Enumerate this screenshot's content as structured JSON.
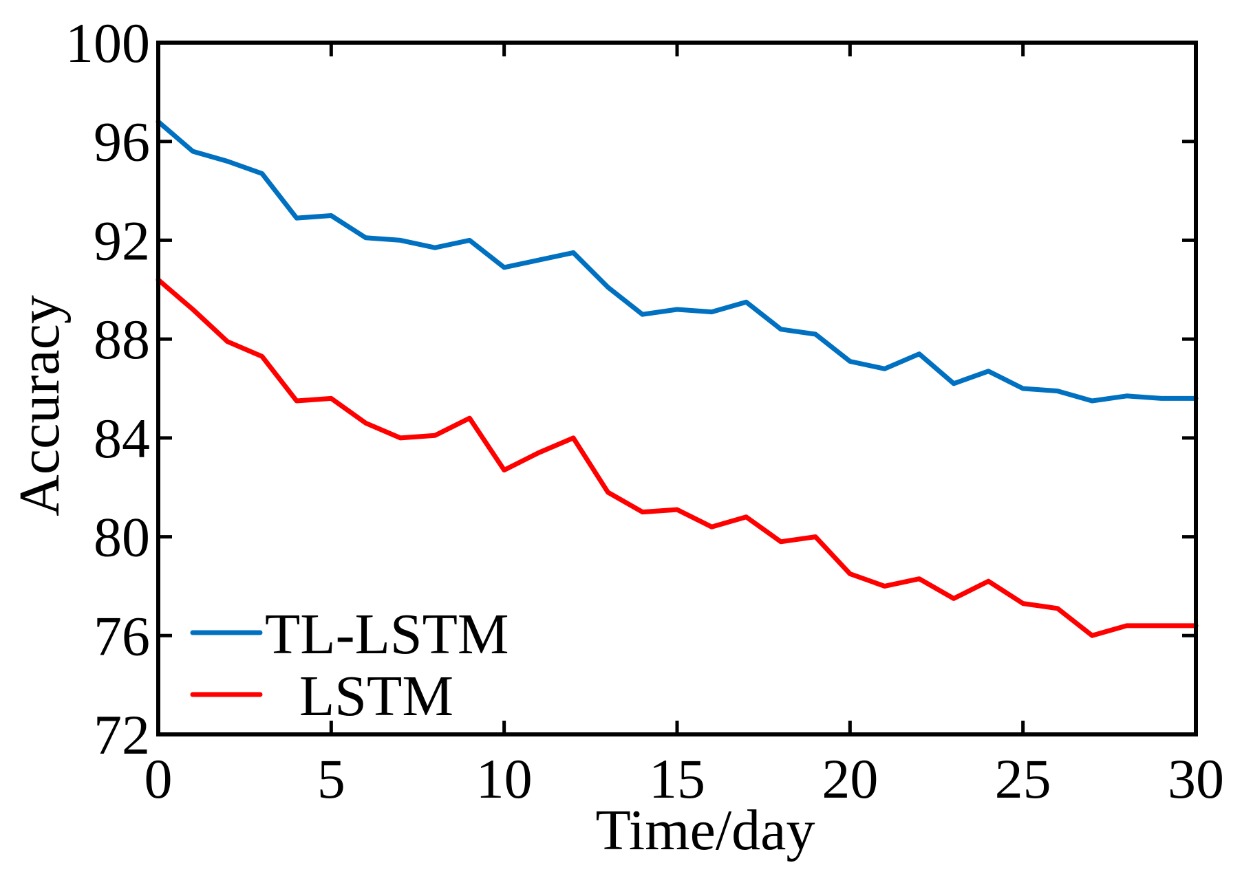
{
  "chart_data": {
    "type": "line",
    "title": "",
    "xlabel": "Time/day",
    "ylabel": "Accuracy",
    "xlim": [
      0,
      30
    ],
    "ylim": [
      72,
      100
    ],
    "xticks": [
      0,
      5,
      10,
      15,
      20,
      25,
      30
    ],
    "yticks": [
      72,
      76,
      80,
      84,
      88,
      92,
      96,
      100
    ],
    "grid": false,
    "legend_position": "bottom-left",
    "x": [
      0,
      1,
      2,
      3,
      4,
      5,
      6,
      7,
      8,
      9,
      10,
      11,
      12,
      13,
      14,
      15,
      16,
      17,
      18,
      19,
      20,
      21,
      22,
      23,
      24,
      25,
      26,
      27,
      28,
      29,
      30
    ],
    "series": [
      {
        "name": "TL-LSTM",
        "color": "#0070c0",
        "values": [
          96.8,
          95.6,
          95.2,
          94.7,
          92.9,
          93.0,
          92.1,
          92.0,
          91.7,
          92.0,
          90.9,
          91.2,
          91.5,
          90.1,
          89.0,
          89.2,
          89.1,
          89.5,
          88.4,
          88.2,
          87.1,
          86.8,
          87.4,
          86.2,
          86.7,
          86.0,
          85.9,
          85.5,
          85.7,
          85.6,
          85.6
        ]
      },
      {
        "name": "LSTM",
        "color": "#ff0000",
        "values": [
          90.4,
          89.2,
          87.9,
          87.3,
          85.5,
          85.6,
          84.6,
          84.0,
          84.1,
          84.8,
          82.7,
          83.4,
          84.0,
          81.8,
          81.0,
          81.1,
          80.4,
          80.8,
          79.8,
          80.0,
          78.5,
          78.0,
          78.3,
          77.5,
          78.2,
          77.3,
          77.1,
          76.0,
          76.4,
          76.4,
          76.4
        ]
      }
    ]
  }
}
